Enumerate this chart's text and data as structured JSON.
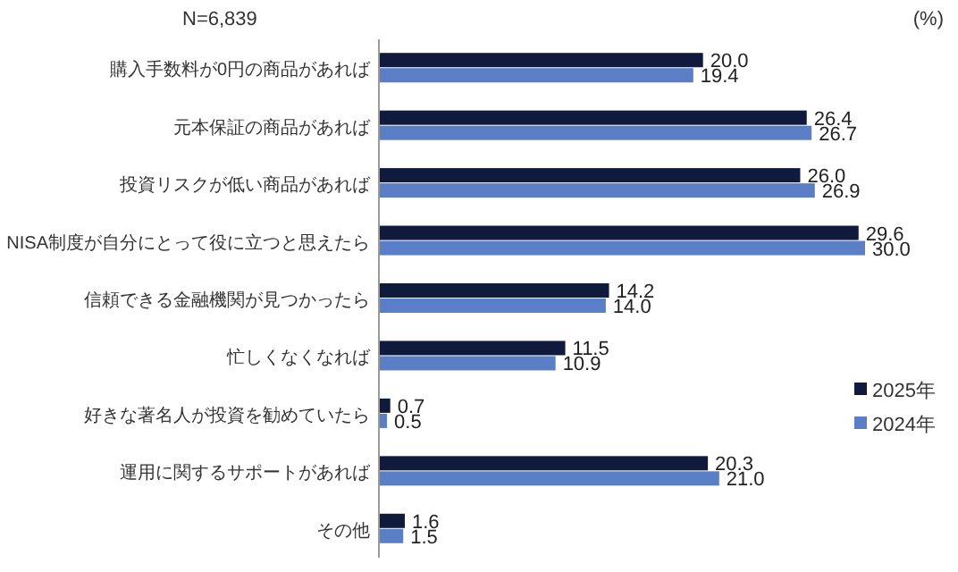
{
  "chart_data": {
    "type": "bar",
    "orientation": "horizontal",
    "categories": [
      "購入手数料が0円の商品があれば",
      "元本保証の商品があれば",
      "投資リスクが低い商品があれば",
      "NISA制度が自分にとって役に立つと思えたら",
      "信頼できる金融機関が見つかったら",
      "忙しくなくなれば",
      "好きな著名人が投資を勧めていたら",
      "運用に関するサポートがあれば",
      "その他"
    ],
    "series": [
      {
        "name": "2025年",
        "color": "#0f1a3c",
        "values": [
          20.0,
          26.4,
          26.0,
          29.6,
          14.2,
          11.5,
          0.7,
          20.3,
          1.6
        ],
        "value_labels": [
          "20.0",
          "26.4",
          "26.0",
          "29.6",
          "14.2",
          "11.5",
          "0.7",
          "20.3",
          "1.6"
        ]
      },
      {
        "name": "2024年",
        "color": "#5b7fc6",
        "values": [
          19.4,
          26.7,
          26.9,
          30.0,
          14.0,
          10.9,
          0.5,
          21.0,
          1.5
        ],
        "value_labels": [
          "19.4",
          "26.7",
          "26.9",
          "30.0",
          "14.0",
          "10.9",
          "0.5",
          "21.0",
          "1.5"
        ]
      }
    ],
    "legend": "right",
    "annotations": [
      "N=6,839",
      "(%)"
    ]
  }
}
